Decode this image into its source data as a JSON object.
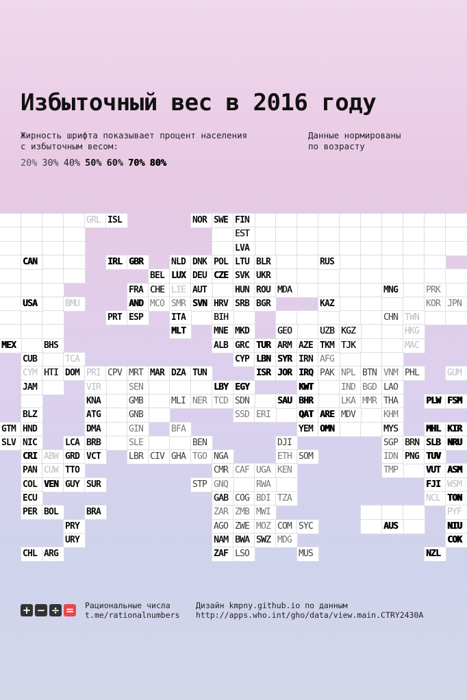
{
  "title": "Избыточный вес в 2016 году",
  "description_line1": "Жирность шрифта показывает процент населения",
  "description_line2": "с избыточным весом:",
  "note_line1": "Данные нормированы",
  "note_line2": "по возрасту",
  "legend": [
    "20%",
    "30%",
    "40%",
    "50%",
    "60%",
    "70%",
    "80%"
  ],
  "footer": {
    "logo_symbols": [
      "+",
      "−",
      "÷",
      "="
    ],
    "logo_colors": [
      "#333333",
      "#333333",
      "#333333",
      "#e8474c"
    ],
    "brand_line1": "Рациональные числа",
    "brand_line2": "t.me/rationalnumbers",
    "credit_line1": "Дизайн kmpny.github.io по данным",
    "credit_line2": "http://apps.who.int/gho/data/view.main.CTRY2430A"
  },
  "countries": [
    {
      "code": "GRL",
      "row": 0,
      "col": 4,
      "level": 0
    },
    {
      "code": "ISL",
      "row": 0,
      "col": 5,
      "level": 4
    },
    {
      "code": "NOR",
      "row": 0,
      "col": 9,
      "level": 4
    },
    {
      "code": "SWE",
      "row": 0,
      "col": 10,
      "level": 4
    },
    {
      "code": "FIN",
      "row": 0,
      "col": 11,
      "level": 4
    },
    {
      "code": "EST",
      "row": 1,
      "col": 11,
      "level": 3
    },
    {
      "code": "LVA",
      "row": 2,
      "col": 11,
      "level": 4
    },
    {
      "code": "CAN",
      "row": 3,
      "col": 1,
      "level": 5
    },
    {
      "code": "IRL",
      "row": 3,
      "col": 5,
      "level": 5
    },
    {
      "code": "GBR",
      "row": 3,
      "col": 6,
      "level": 5
    },
    {
      "code": "NLD",
      "row": 3,
      "col": 8,
      "level": 4
    },
    {
      "code": "DNK",
      "row": 3,
      "col": 9,
      "level": 4
    },
    {
      "code": "POL",
      "row": 3,
      "col": 10,
      "level": 4
    },
    {
      "code": "LTU",
      "row": 3,
      "col": 11,
      "level": 4
    },
    {
      "code": "BLR",
      "row": 3,
      "col": 12,
      "level": 4
    },
    {
      "code": "RUS",
      "row": 3,
      "col": 15,
      "level": 4
    },
    {
      "code": "BEL",
      "row": 4,
      "col": 7,
      "level": 4
    },
    {
      "code": "LUX",
      "row": 4,
      "col": 8,
      "level": 5
    },
    {
      "code": "DEU",
      "row": 4,
      "col": 9,
      "level": 4
    },
    {
      "code": "CZE",
      "row": 4,
      "col": 10,
      "level": 5
    },
    {
      "code": "SVK",
      "row": 4,
      "col": 11,
      "level": 4
    },
    {
      "code": "UKR",
      "row": 4,
      "col": 12,
      "level": 4
    },
    {
      "code": "FRA",
      "row": 5,
      "col": 6,
      "level": 4
    },
    {
      "code": "CHE",
      "row": 5,
      "col": 7,
      "level": 3
    },
    {
      "code": "LIE",
      "row": 5,
      "col": 8,
      "level": 0
    },
    {
      "code": "AUT",
      "row": 5,
      "col": 9,
      "level": 4
    },
    {
      "code": "HUN",
      "row": 5,
      "col": 11,
      "level": 4
    },
    {
      "code": "ROU",
      "row": 5,
      "col": 12,
      "level": 4
    },
    {
      "code": "MDA",
      "row": 5,
      "col": 13,
      "level": 3
    },
    {
      "code": "MNG",
      "row": 5,
      "col": 18,
      "level": 4
    },
    {
      "code": "PRK",
      "row": 5,
      "col": 20,
      "level": 1
    },
    {
      "code": "USA",
      "row": 6,
      "col": 1,
      "level": 5
    },
    {
      "code": "BMU",
      "row": 6,
      "col": 3,
      "level": 0
    },
    {
      "code": "AND",
      "row": 6,
      "col": 6,
      "level": 5
    },
    {
      "code": "MCO",
      "row": 6,
      "col": 7,
      "level": 1
    },
    {
      "code": "SMR",
      "row": 6,
      "col": 8,
      "level": 1
    },
    {
      "code": "SVN",
      "row": 6,
      "col": 9,
      "level": 5
    },
    {
      "code": "HRV",
      "row": 6,
      "col": 10,
      "level": 4
    },
    {
      "code": "SRB",
      "row": 6,
      "col": 11,
      "level": 4
    },
    {
      "code": "BGR",
      "row": 6,
      "col": 12,
      "level": 4
    },
    {
      "code": "KAZ",
      "row": 6,
      "col": 15,
      "level": 4
    },
    {
      "code": "KOR",
      "row": 6,
      "col": 20,
      "level": 1
    },
    {
      "code": "JPN",
      "row": 6,
      "col": 21,
      "level": 1
    },
    {
      "code": "PRT",
      "row": 7,
      "col": 5,
      "level": 4
    },
    {
      "code": "ESP",
      "row": 7,
      "col": 6,
      "level": 4
    },
    {
      "code": "ITA",
      "row": 7,
      "col": 8,
      "level": 4
    },
    {
      "code": "BIH",
      "row": 7,
      "col": 10,
      "level": 3
    },
    {
      "code": "CHN",
      "row": 7,
      "col": 18,
      "level": 2
    },
    {
      "code": "TWN",
      "row": 7,
      "col": 19,
      "level": 0
    },
    {
      "code": "MLT",
      "row": 8,
      "col": 8,
      "level": 5
    },
    {
      "code": "MNE",
      "row": 8,
      "col": 10,
      "level": 4
    },
    {
      "code": "MKD",
      "row": 8,
      "col": 11,
      "level": 4
    },
    {
      "code": "GEO",
      "row": 8,
      "col": 13,
      "level": 3
    },
    {
      "code": "UZB",
      "row": 8,
      "col": 15,
      "level": 3
    },
    {
      "code": "KGZ",
      "row": 8,
      "col": 16,
      "level": 3
    },
    {
      "code": "HKG",
      "row": 8,
      "col": 19,
      "level": 0
    },
    {
      "code": "MEX",
      "row": 9,
      "col": 0,
      "level": 5
    },
    {
      "code": "BHS",
      "row": 9,
      "col": 2,
      "level": 4
    },
    {
      "code": "ALB",
      "row": 9,
      "col": 10,
      "level": 4
    },
    {
      "code": "GRC",
      "row": 9,
      "col": 11,
      "level": 4
    },
    {
      "code": "TUR",
      "row": 9,
      "col": 12,
      "level": 5
    },
    {
      "code": "ARM",
      "row": 9,
      "col": 13,
      "level": 4
    },
    {
      "code": "AZE",
      "row": 9,
      "col": 14,
      "level": 4
    },
    {
      "code": "TKM",
      "row": 9,
      "col": 15,
      "level": 4
    },
    {
      "code": "TJK",
      "row": 9,
      "col": 16,
      "level": 3
    },
    {
      "code": "MAC",
      "row": 9,
      "col": 19,
      "level": 0
    },
    {
      "code": "CUB",
      "row": 10,
      "col": 1,
      "level": 4
    },
    {
      "code": "TCA",
      "row": 10,
      "col": 3,
      "level": 0
    },
    {
      "code": "CYP",
      "row": 10,
      "col": 11,
      "level": 4
    },
    {
      "code": "LBN",
      "row": 10,
      "col": 12,
      "level": 5
    },
    {
      "code": "SYR",
      "row": 10,
      "col": 13,
      "level": 5
    },
    {
      "code": "IRN",
      "row": 10,
      "col": 14,
      "level": 4
    },
    {
      "code": "AFG",
      "row": 10,
      "col": 15,
      "level": 1
    },
    {
      "code": "CYM",
      "row": 11,
      "col": 1,
      "level": 0
    },
    {
      "code": "HTI",
      "row": 11,
      "col": 2,
      "level": 3
    },
    {
      "code": "DOM",
      "row": 11,
      "col": 3,
      "level": 4
    },
    {
      "code": "PRI",
      "row": 11,
      "col": 4,
      "level": 0
    },
    {
      "code": "CPV",
      "row": 11,
      "col": 5,
      "level": 2
    },
    {
      "code": "MRT",
      "row": 11,
      "col": 6,
      "level": 2
    },
    {
      "code": "MAR",
      "row": 11,
      "col": 7,
      "level": 4
    },
    {
      "code": "DZA",
      "row": 11,
      "col": 8,
      "level": 4
    },
    {
      "code": "TUN",
      "row": 11,
      "col": 9,
      "level": 4
    },
    {
      "code": "ISR",
      "row": 11,
      "col": 12,
      "level": 5
    },
    {
      "code": "JOR",
      "row": 11,
      "col": 13,
      "level": 5
    },
    {
      "code": "IRQ",
      "row": 11,
      "col": 14,
      "level": 5
    },
    {
      "code": "PAK",
      "row": 11,
      "col": 15,
      "level": 2
    },
    {
      "code": "NPL",
      "row": 11,
      "col": 16,
      "level": 1
    },
    {
      "code": "BTN",
      "row": 11,
      "col": 17,
      "level": 2
    },
    {
      "code": "VNM",
      "row": 11,
      "col": 18,
      "level": 1
    },
    {
      "code": "PHL",
      "row": 11,
      "col": 19,
      "level": 2
    },
    {
      "code": "GUM",
      "row": 11,
      "col": 21,
      "level": 0
    },
    {
      "code": "JAM",
      "row": 12,
      "col": 1,
      "level": 4
    },
    {
      "code": "VIR",
      "row": 12,
      "col": 4,
      "level": 0
    },
    {
      "code": "SEN",
      "row": 12,
      "col": 6,
      "level": 1
    },
    {
      "code": "LBY",
      "row": 12,
      "col": 10,
      "level": 5
    },
    {
      "code": "EGY",
      "row": 12,
      "col": 11,
      "level": 5
    },
    {
      "code": "KWT",
      "row": 12,
      "col": 14,
      "level": 6
    },
    {
      "code": "IND",
      "row": 12,
      "col": 16,
      "level": 1
    },
    {
      "code": "BGD",
      "row": 12,
      "col": 17,
      "level": 1
    },
    {
      "code": "LAO",
      "row": 12,
      "col": 18,
      "level": 2
    },
    {
      "code": "KNA",
      "row": 13,
      "col": 4,
      "level": 4
    },
    {
      "code": "GMB",
      "row": 13,
      "col": 6,
      "level": 2
    },
    {
      "code": "MLI",
      "row": 13,
      "col": 8,
      "level": 2
    },
    {
      "code": "NER",
      "row": 13,
      "col": 9,
      "level": 1
    },
    {
      "code": "TCD",
      "row": 13,
      "col": 10,
      "level": 1
    },
    {
      "code": "SDN",
      "row": 13,
      "col": 11,
      "level": 2
    },
    {
      "code": "SAU",
      "row": 13,
      "col": 13,
      "level": 5
    },
    {
      "code": "BHR",
      "row": 13,
      "col": 14,
      "level": 5
    },
    {
      "code": "LKA",
      "row": 13,
      "col": 16,
      "level": 1
    },
    {
      "code": "MMR",
      "row": 13,
      "col": 17,
      "level": 1
    },
    {
      "code": "THA",
      "row": 13,
      "col": 18,
      "level": 2
    },
    {
      "code": "PLW",
      "row": 13,
      "col": 20,
      "level": 6
    },
    {
      "code": "FSM",
      "row": 13,
      "col": 21,
      "level": 6
    },
    {
      "code": "BLZ",
      "row": 14,
      "col": 1,
      "level": 4
    },
    {
      "code": "ATG",
      "row": 14,
      "col": 4,
      "level": 4
    },
    {
      "code": "GNB",
      "row": 14,
      "col": 6,
      "level": 2
    },
    {
      "code": "SSD",
      "row": 14,
      "col": 11,
      "level": 1
    },
    {
      "code": "ERI",
      "row": 14,
      "col": 12,
      "level": 1
    },
    {
      "code": "QAT",
      "row": 14,
      "col": 14,
      "level": 6
    },
    {
      "code": "ARE",
      "row": 14,
      "col": 15,
      "level": 5
    },
    {
      "code": "MDV",
      "row": 14,
      "col": 16,
      "level": 2
    },
    {
      "code": "KHM",
      "row": 14,
      "col": 18,
      "level": 1
    },
    {
      "code": "GTM",
      "row": 15,
      "col": 0,
      "level": 4
    },
    {
      "code": "HND",
      "row": 15,
      "col": 1,
      "level": 4
    },
    {
      "code": "DMA",
      "row": 15,
      "col": 4,
      "level": 4
    },
    {
      "code": "GIN",
      "row": 15,
      "col": 6,
      "level": 1
    },
    {
      "code": "BFA",
      "row": 15,
      "col": 8,
      "level": 1
    },
    {
      "code": "YEM",
      "row": 15,
      "col": 14,
      "level": 4
    },
    {
      "code": "OMN",
      "row": 15,
      "col": 15,
      "level": 5
    },
    {
      "code": "MYS",
      "row": 15,
      "col": 18,
      "level": 3
    },
    {
      "code": "MHL",
      "row": 15,
      "col": 20,
      "level": 6
    },
    {
      "code": "KIR",
      "row": 15,
      "col": 21,
      "level": 6
    },
    {
      "code": "SLV",
      "row": 16,
      "col": 0,
      "level": 4
    },
    {
      "code": "NIC",
      "row": 16,
      "col": 1,
      "level": 4
    },
    {
      "code": "LCA",
      "row": 16,
      "col": 3,
      "level": 4
    },
    {
      "code": "BRB",
      "row": 16,
      "col": 4,
      "level": 4
    },
    {
      "code": "SLE",
      "row": 16,
      "col": 6,
      "level": 1
    },
    {
      "code": "BEN",
      "row": 16,
      "col": 9,
      "level": 2
    },
    {
      "code": "DJI",
      "row": 16,
      "col": 13,
      "level": 2
    },
    {
      "code": "SGP",
      "row": 16,
      "col": 18,
      "level": 2
    },
    {
      "code": "BRN",
      "row": 16,
      "col": 19,
      "level": 3
    },
    {
      "code": "SLB",
      "row": 16,
      "col": 20,
      "level": 5
    },
    {
      "code": "NRU",
      "row": 16,
      "col": 21,
      "level": 6
    },
    {
      "code": "CRI",
      "row": 17,
      "col": 1,
      "level": 5
    },
    {
      "code": "ABW",
      "row": 17,
      "col": 2,
      "level": 0
    },
    {
      "code": "GRD",
      "row": 17,
      "col": 3,
      "level": 4
    },
    {
      "code": "VCT",
      "row": 17,
      "col": 4,
      "level": 4
    },
    {
      "code": "LBR",
      "row": 17,
      "col": 6,
      "level": 2
    },
    {
      "code": "CIV",
      "row": 17,
      "col": 7,
      "level": 2
    },
    {
      "code": "GHA",
      "row": 17,
      "col": 8,
      "level": 2
    },
    {
      "code": "TGO",
      "row": 17,
      "col": 9,
      "level": 1
    },
    {
      "code": "NGA",
      "row": 17,
      "col": 10,
      "level": 2
    },
    {
      "code": "ETH",
      "row": 17,
      "col": 13,
      "level": 1
    },
    {
      "code": "SOM",
      "row": 17,
      "col": 14,
      "level": 2
    },
    {
      "code": "IDN",
      "row": 17,
      "col": 18,
      "level": 1
    },
    {
      "code": "PNG",
      "row": 17,
      "col": 19,
      "level": 4
    },
    {
      "code": "TUV",
      "row": 17,
      "col": 20,
      "level": 6
    },
    {
      "code": "PAN",
      "row": 18,
      "col": 1,
      "level": 4
    },
    {
      "code": "CUW",
      "row": 18,
      "col": 2,
      "level": 0
    },
    {
      "code": "TTO",
      "row": 18,
      "col": 3,
      "level": 4
    },
    {
      "code": "CMR",
      "row": 18,
      "col": 10,
      "level": 2
    },
    {
      "code": "CAF",
      "row": 18,
      "col": 11,
      "level": 1
    },
    {
      "code": "UGA",
      "row": 18,
      "col": 12,
      "level": 1
    },
    {
      "code": "KEN",
      "row": 18,
      "col": 13,
      "level": 1
    },
    {
      "code": "TMP",
      "row": 18,
      "col": 18,
      "level": 1
    },
    {
      "code": "VUT",
      "row": 18,
      "col": 20,
      "level": 5
    },
    {
      "code": "ASM",
      "row": 18,
      "col": 21,
      "level": 6
    },
    {
      "code": "COL",
      "row": 19,
      "col": 1,
      "level": 4
    },
    {
      "code": "VEN",
      "row": 19,
      "col": 2,
      "level": 5
    },
    {
      "code": "GUY",
      "row": 19,
      "col": 3,
      "level": 4
    },
    {
      "code": "SUR",
      "row": 19,
      "col": 4,
      "level": 4
    },
    {
      "code": "STP",
      "row": 19,
      "col": 9,
      "level": 2
    },
    {
      "code": "GNQ",
      "row": 19,
      "col": 10,
      "level": 1
    },
    {
      "code": "RWA",
      "row": 19,
      "col": 12,
      "level": 1
    },
    {
      "code": "FJI",
      "row": 19,
      "col": 20,
      "level": 5
    },
    {
      "code": "WSM",
      "row": 19,
      "col": 21,
      "level": 0
    },
    {
      "code": "ECU",
      "row": 20,
      "col": 1,
      "level": 4
    },
    {
      "code": "GAB",
      "row": 20,
      "col": 10,
      "level": 3
    },
    {
      "code": "COG",
      "row": 20,
      "col": 11,
      "level": 2
    },
    {
      "code": "BDI",
      "row": 20,
      "col": 12,
      "level": 1
    },
    {
      "code": "TZA",
      "row": 20,
      "col": 13,
      "level": 1
    },
    {
      "code": "NCL",
      "row": 20,
      "col": 20,
      "level": 0
    },
    {
      "code": "TON",
      "row": 20,
      "col": 21,
      "level": 6
    },
    {
      "code": "PER",
      "row": 21,
      "col": 1,
      "level": 4
    },
    {
      "code": "BOL",
      "row": 21,
      "col": 2,
      "level": 4
    },
    {
      "code": "BRA",
      "row": 21,
      "col": 4,
      "level": 4
    },
    {
      "code": "ZAR",
      "row": 21,
      "col": 10,
      "level": 1
    },
    {
      "code": "ZMB",
      "row": 21,
      "col": 11,
      "level": 1
    },
    {
      "code": "MWI",
      "row": 21,
      "col": 12,
      "level": 1
    },
    {
      "code": "PYF",
      "row": 21,
      "col": 21,
      "level": 0
    },
    {
      "code": "PRY",
      "row": 22,
      "col": 3,
      "level": 4
    },
    {
      "code": "AGO",
      "row": 22,
      "col": 10,
      "level": 2
    },
    {
      "code": "ZWE",
      "row": 22,
      "col": 11,
      "level": 2
    },
    {
      "code": "MOZ",
      "row": 22,
      "col": 12,
      "level": 1
    },
    {
      "code": "COM",
      "row": 22,
      "col": 13,
      "level": 2
    },
    {
      "code": "SYC",
      "row": 22,
      "col": 14,
      "level": 2
    },
    {
      "code": "AUS",
      "row": 22,
      "col": 18,
      "level": 5
    },
    {
      "code": "NIU",
      "row": 22,
      "col": 21,
      "level": 6
    },
    {
      "code": "URY",
      "row": 23,
      "col": 3,
      "level": 4
    },
    {
      "code": "NAM",
      "row": 23,
      "col": 10,
      "level": 3
    },
    {
      "code": "BWA",
      "row": 23,
      "col": 11,
      "level": 3
    },
    {
      "code": "SWZ",
      "row": 23,
      "col": 12,
      "level": 3
    },
    {
      "code": "MDG",
      "row": 23,
      "col": 13,
      "level": 1
    },
    {
      "code": "COK",
      "row": 23,
      "col": 21,
      "level": 6
    },
    {
      "code": "CHL",
      "row": 24,
      "col": 1,
      "level": 4
    },
    {
      "code": "ARG",
      "row": 24,
      "col": 2,
      "level": 4
    },
    {
      "code": "ZAF",
      "row": 24,
      "col": 10,
      "level": 4
    },
    {
      "code": "LSO",
      "row": 24,
      "col": 11,
      "level": 2
    },
    {
      "code": "MUS",
      "row": 24,
      "col": 14,
      "level": 2
    },
    {
      "code": "NZL",
      "row": 24,
      "col": 20,
      "level": 5
    }
  ]
}
